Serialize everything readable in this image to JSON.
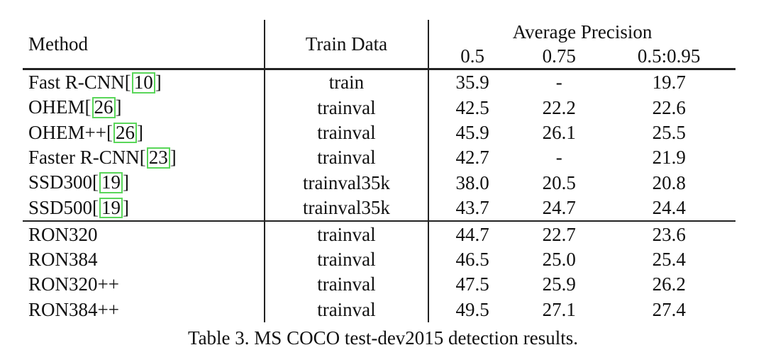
{
  "table": {
    "headers": {
      "method": "Method",
      "train_data": "Train Data",
      "ap_group": "Average Precision",
      "ap_cols": [
        "0.5",
        "0.75",
        "0.5:0.95"
      ]
    },
    "rows": [
      {
        "method": "Fast R-CNN",
        "ref": "10",
        "train": "train",
        "ap": [
          "35.9",
          "-",
          "19.7"
        ]
      },
      {
        "method": "OHEM",
        "ref": "26",
        "train": "trainval",
        "ap": [
          "42.5",
          "22.2",
          "22.6"
        ]
      },
      {
        "method": "OHEM++",
        "ref": "26",
        "train": "trainval",
        "ap": [
          "45.9",
          "26.1",
          "25.5"
        ]
      },
      {
        "method": "Faster R-CNN",
        "ref": "23",
        "train": "trainval",
        "ap": [
          "42.7",
          "-",
          "21.9"
        ]
      },
      {
        "method": "SSD300",
        "ref": "19",
        "train": "trainval35k",
        "ap": [
          "38.0",
          "20.5",
          "20.8"
        ]
      },
      {
        "method": "SSD500",
        "ref": "19",
        "train": "trainval35k",
        "ap": [
          "43.7",
          "24.7",
          "24.4"
        ]
      },
      {
        "method": "RON320",
        "ref": "",
        "train": "trainval",
        "ap": [
          "44.7",
          "22.7",
          "23.6"
        ]
      },
      {
        "method": "RON384",
        "ref": "",
        "train": "trainval",
        "ap": [
          "46.5",
          "25.0",
          "25.4"
        ]
      },
      {
        "method": "RON320++",
        "ref": "",
        "train": "trainval",
        "ap": [
          "47.5",
          "25.9",
          "26.2"
        ]
      },
      {
        "method": "RON384++",
        "ref": "",
        "train": "trainval",
        "ap": [
          "49.5",
          "27.1",
          "27.4"
        ],
        "bold_ap": true
      }
    ]
  },
  "caption": "Table 3. MS COCO test-dev2015 detection results."
}
